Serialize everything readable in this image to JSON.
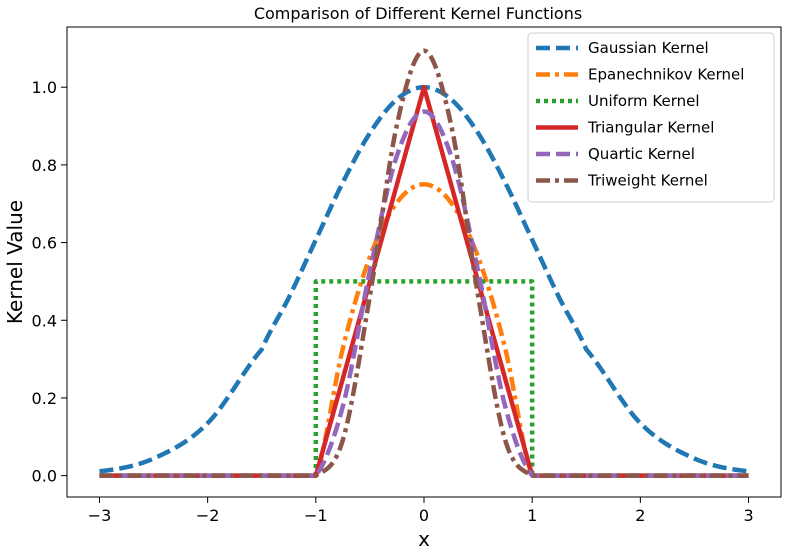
{
  "chart_data": {
    "type": "line",
    "title": "Comparison of Different Kernel Functions",
    "xlabel": "x",
    "ylabel": "Kernel Value",
    "xlim": [
      -3.3,
      3.3
    ],
    "ylim": [
      -0.055,
      1.155
    ],
    "xticks": [
      -3,
      -2,
      -1,
      0,
      1,
      2,
      3
    ],
    "xtick_labels": [
      "−3",
      "−2",
      "−1",
      "0",
      "1",
      "2",
      "3"
    ],
    "yticks": [
      0.0,
      0.2,
      0.4,
      0.6,
      0.8,
      1.0
    ],
    "ytick_labels": [
      "0.0",
      "0.2",
      "0.4",
      "0.6",
      "0.8",
      "1.0"
    ],
    "grid": false,
    "legend_position": "top-right",
    "x": [
      -3.0,
      -2.5,
      -2.0,
      -1.5,
      -1.25,
      -1.0,
      -0.75,
      -0.5,
      -0.25,
      0.0,
      0.25,
      0.5,
      0.75,
      1.0,
      1.25,
      1.5,
      2.0,
      2.5,
      3.0
    ],
    "series": [
      {
        "name": "Gaussian Kernel",
        "color": "#1f77b4",
        "dash": "dashed",
        "values": [
          0.011,
          0.044,
          0.135,
          0.325,
          0.458,
          0.607,
          0.755,
          0.882,
          0.969,
          1.0,
          0.969,
          0.882,
          0.755,
          0.607,
          0.458,
          0.325,
          0.135,
          0.044,
          0.011
        ]
      },
      {
        "name": "Epanechnikov Kernel",
        "color": "#ff7f0e",
        "dash": "dashdot",
        "values": [
          0,
          0,
          0,
          0,
          0,
          0,
          0.328,
          0.563,
          0.703,
          0.75,
          0.703,
          0.563,
          0.328,
          0,
          0,
          0,
          0,
          0,
          0
        ]
      },
      {
        "name": "Uniform Kernel",
        "color": "#2ca02c",
        "dash": "dotted",
        "values": [
          0,
          0,
          0,
          0,
          0,
          0.5,
          0.5,
          0.5,
          0.5,
          0.5,
          0.5,
          0.5,
          0.5,
          0.5,
          0,
          0,
          0,
          0,
          0
        ]
      },
      {
        "name": "Triangular Kernel",
        "color": "#d62728",
        "dash": "solid",
        "values": [
          0,
          0,
          0,
          0,
          0,
          0,
          0.25,
          0.5,
          0.75,
          1.0,
          0.75,
          0.5,
          0.25,
          0,
          0,
          0,
          0,
          0,
          0
        ]
      },
      {
        "name": "Quartic Kernel",
        "color": "#9467bd",
        "dash": "dashed",
        "values": [
          0,
          0,
          0,
          0,
          0,
          0,
          0.179,
          0.527,
          0.824,
          0.9375,
          0.824,
          0.527,
          0.179,
          0,
          0,
          0,
          0,
          0,
          0
        ]
      },
      {
        "name": "Triweight Kernel",
        "color": "#8c564b",
        "dash": "dashdot",
        "values": [
          0,
          0,
          0,
          0,
          0,
          0,
          0.092,
          0.463,
          0.904,
          1.094,
          0.904,
          0.463,
          0.092,
          0,
          0,
          0,
          0,
          0,
          0
        ]
      }
    ]
  }
}
